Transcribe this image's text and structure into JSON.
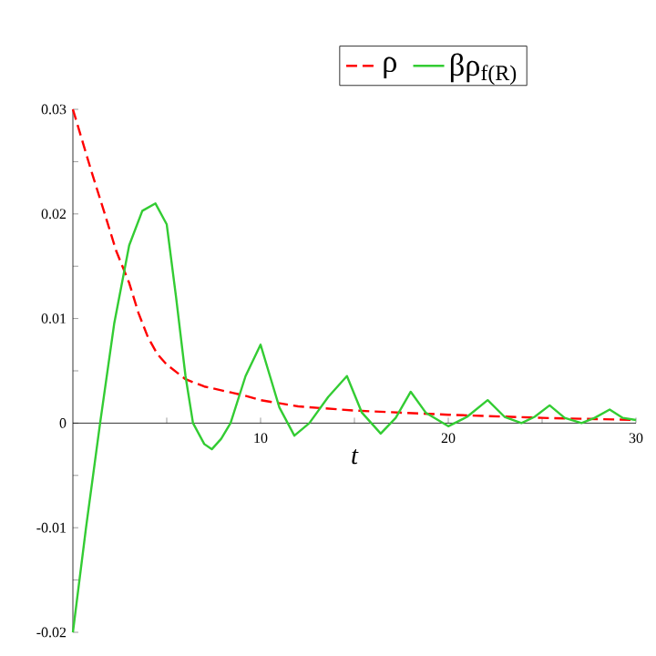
{
  "chart_data": {
    "type": "line",
    "xlabel": "t",
    "legend": "top",
    "xlim": [
      0,
      30
    ],
    "ylim": [
      -0.02,
      0.03
    ],
    "xticks": [
      {
        "value": 5,
        "label": null
      },
      10,
      {
        "value": 15,
        "label": null
      },
      20,
      {
        "value": 25,
        "label": null
      },
      30
    ],
    "yticks": [
      -0.02,
      {
        "value": -0.015,
        "label": null
      },
      -0.01,
      {
        "value": -0.005,
        "label": null
      },
      0,
      {
        "value": 0.005,
        "label": null
      },
      0.01,
      {
        "value": 0.015,
        "label": null
      },
      0.02,
      {
        "value": 0.025,
        "label": null
      },
      0.03
    ],
    "series": [
      {
        "name": "ρ",
        "color": "#ff0000",
        "line_style": "dashed",
        "x": [
          0,
          1,
          1.7,
          2.3,
          3,
          3.5,
          4,
          4.5,
          5,
          6,
          7,
          8,
          9,
          10,
          12,
          15,
          20,
          25,
          30
        ],
        "values": [
          0.03,
          0.024,
          0.02,
          0.0165,
          0.0134,
          0.0105,
          0.0082,
          0.0066,
          0.0056,
          0.0042,
          0.0035,
          0.0031,
          0.0027,
          0.0022,
          0.0016,
          0.0012,
          0.0008,
          0.0005,
          0.0003
        ]
      },
      {
        "name": "βρ$_{f(R)}$",
        "color": "#33cc33",
        "line_style": "solid",
        "x": [
          0,
          0.7,
          1.45,
          2.2,
          3,
          3.7,
          4.4,
          5,
          5.5,
          6,
          6.4,
          7,
          7.4,
          7.9,
          8.4,
          9.2,
          10,
          10.5,
          11,
          11.8,
          12.6,
          13.6,
          14.6,
          15.4,
          16.4,
          17.2,
          18,
          18.8,
          20,
          21,
          22.1,
          23,
          23.9,
          24.6,
          25.4,
          26.2,
          27.1,
          27.8,
          28.6,
          29.3,
          30
        ],
        "values": [
          -0.02,
          -0.01,
          0,
          0.0095,
          0.017,
          0.0203,
          0.021,
          0.019,
          0.012,
          0.0045,
          0,
          -0.002,
          -0.0025,
          -0.0015,
          0,
          0.0045,
          0.0075,
          0.0045,
          0.0015,
          -0.0012,
          0,
          0.0025,
          0.0045,
          0.001,
          -0.001,
          0.0005,
          0.003,
          0.001,
          -0.0003,
          0.0006,
          0.0022,
          0.0006,
          0,
          0.0006,
          0.0017,
          0.0005,
          0,
          0.0005,
          0.0013,
          0.0005,
          0.0003
        ]
      }
    ]
  }
}
